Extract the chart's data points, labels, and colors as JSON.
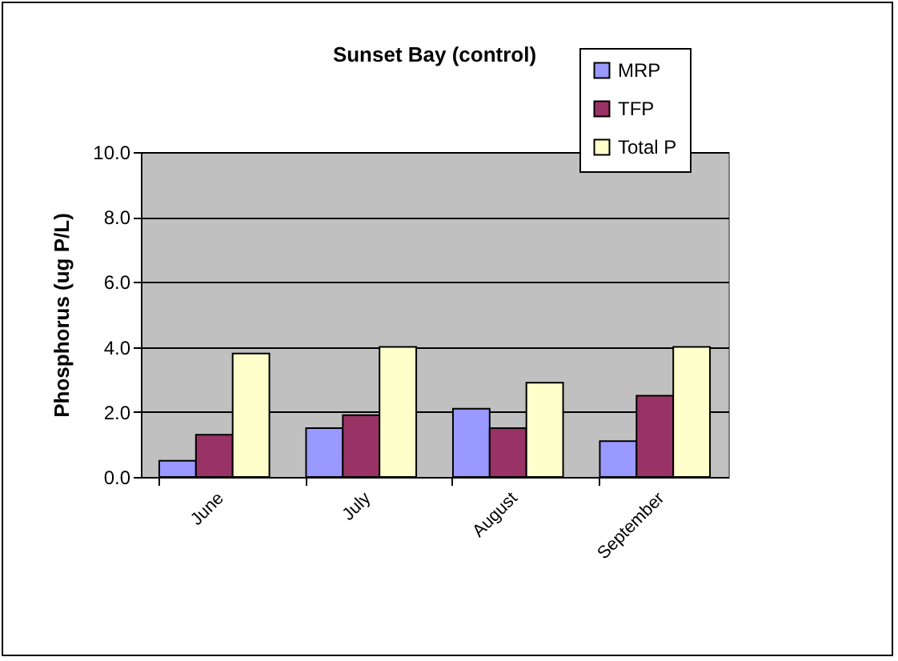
{
  "chart_data": {
    "type": "bar",
    "title": "Sunset Bay (control)",
    "ylabel": "Phosphorus (ug P/L)",
    "categories": [
      "June",
      "July",
      "August",
      "September"
    ],
    "series": [
      {
        "name": "MRP",
        "color": "#9999ff",
        "values": [
          0.5,
          1.5,
          2.1,
          1.1
        ]
      },
      {
        "name": "TFP",
        "color": "#993366",
        "values": [
          1.3,
          1.9,
          1.5,
          2.5
        ]
      },
      {
        "name": "Total P",
        "color": "#ffffcc",
        "values": [
          3.8,
          4.0,
          2.9,
          4.0
        ]
      }
    ],
    "ylim": [
      0,
      10
    ],
    "yticks": [
      {
        "value": 0,
        "label": "0.0"
      },
      {
        "value": 2,
        "label": "2.0"
      },
      {
        "value": 4,
        "label": "4.0"
      },
      {
        "value": 6,
        "label": "6.0"
      },
      {
        "value": 8,
        "label": "8.0"
      },
      {
        "value": 10,
        "label": "10.0"
      }
    ],
    "grid": "y",
    "legend": "top right"
  }
}
